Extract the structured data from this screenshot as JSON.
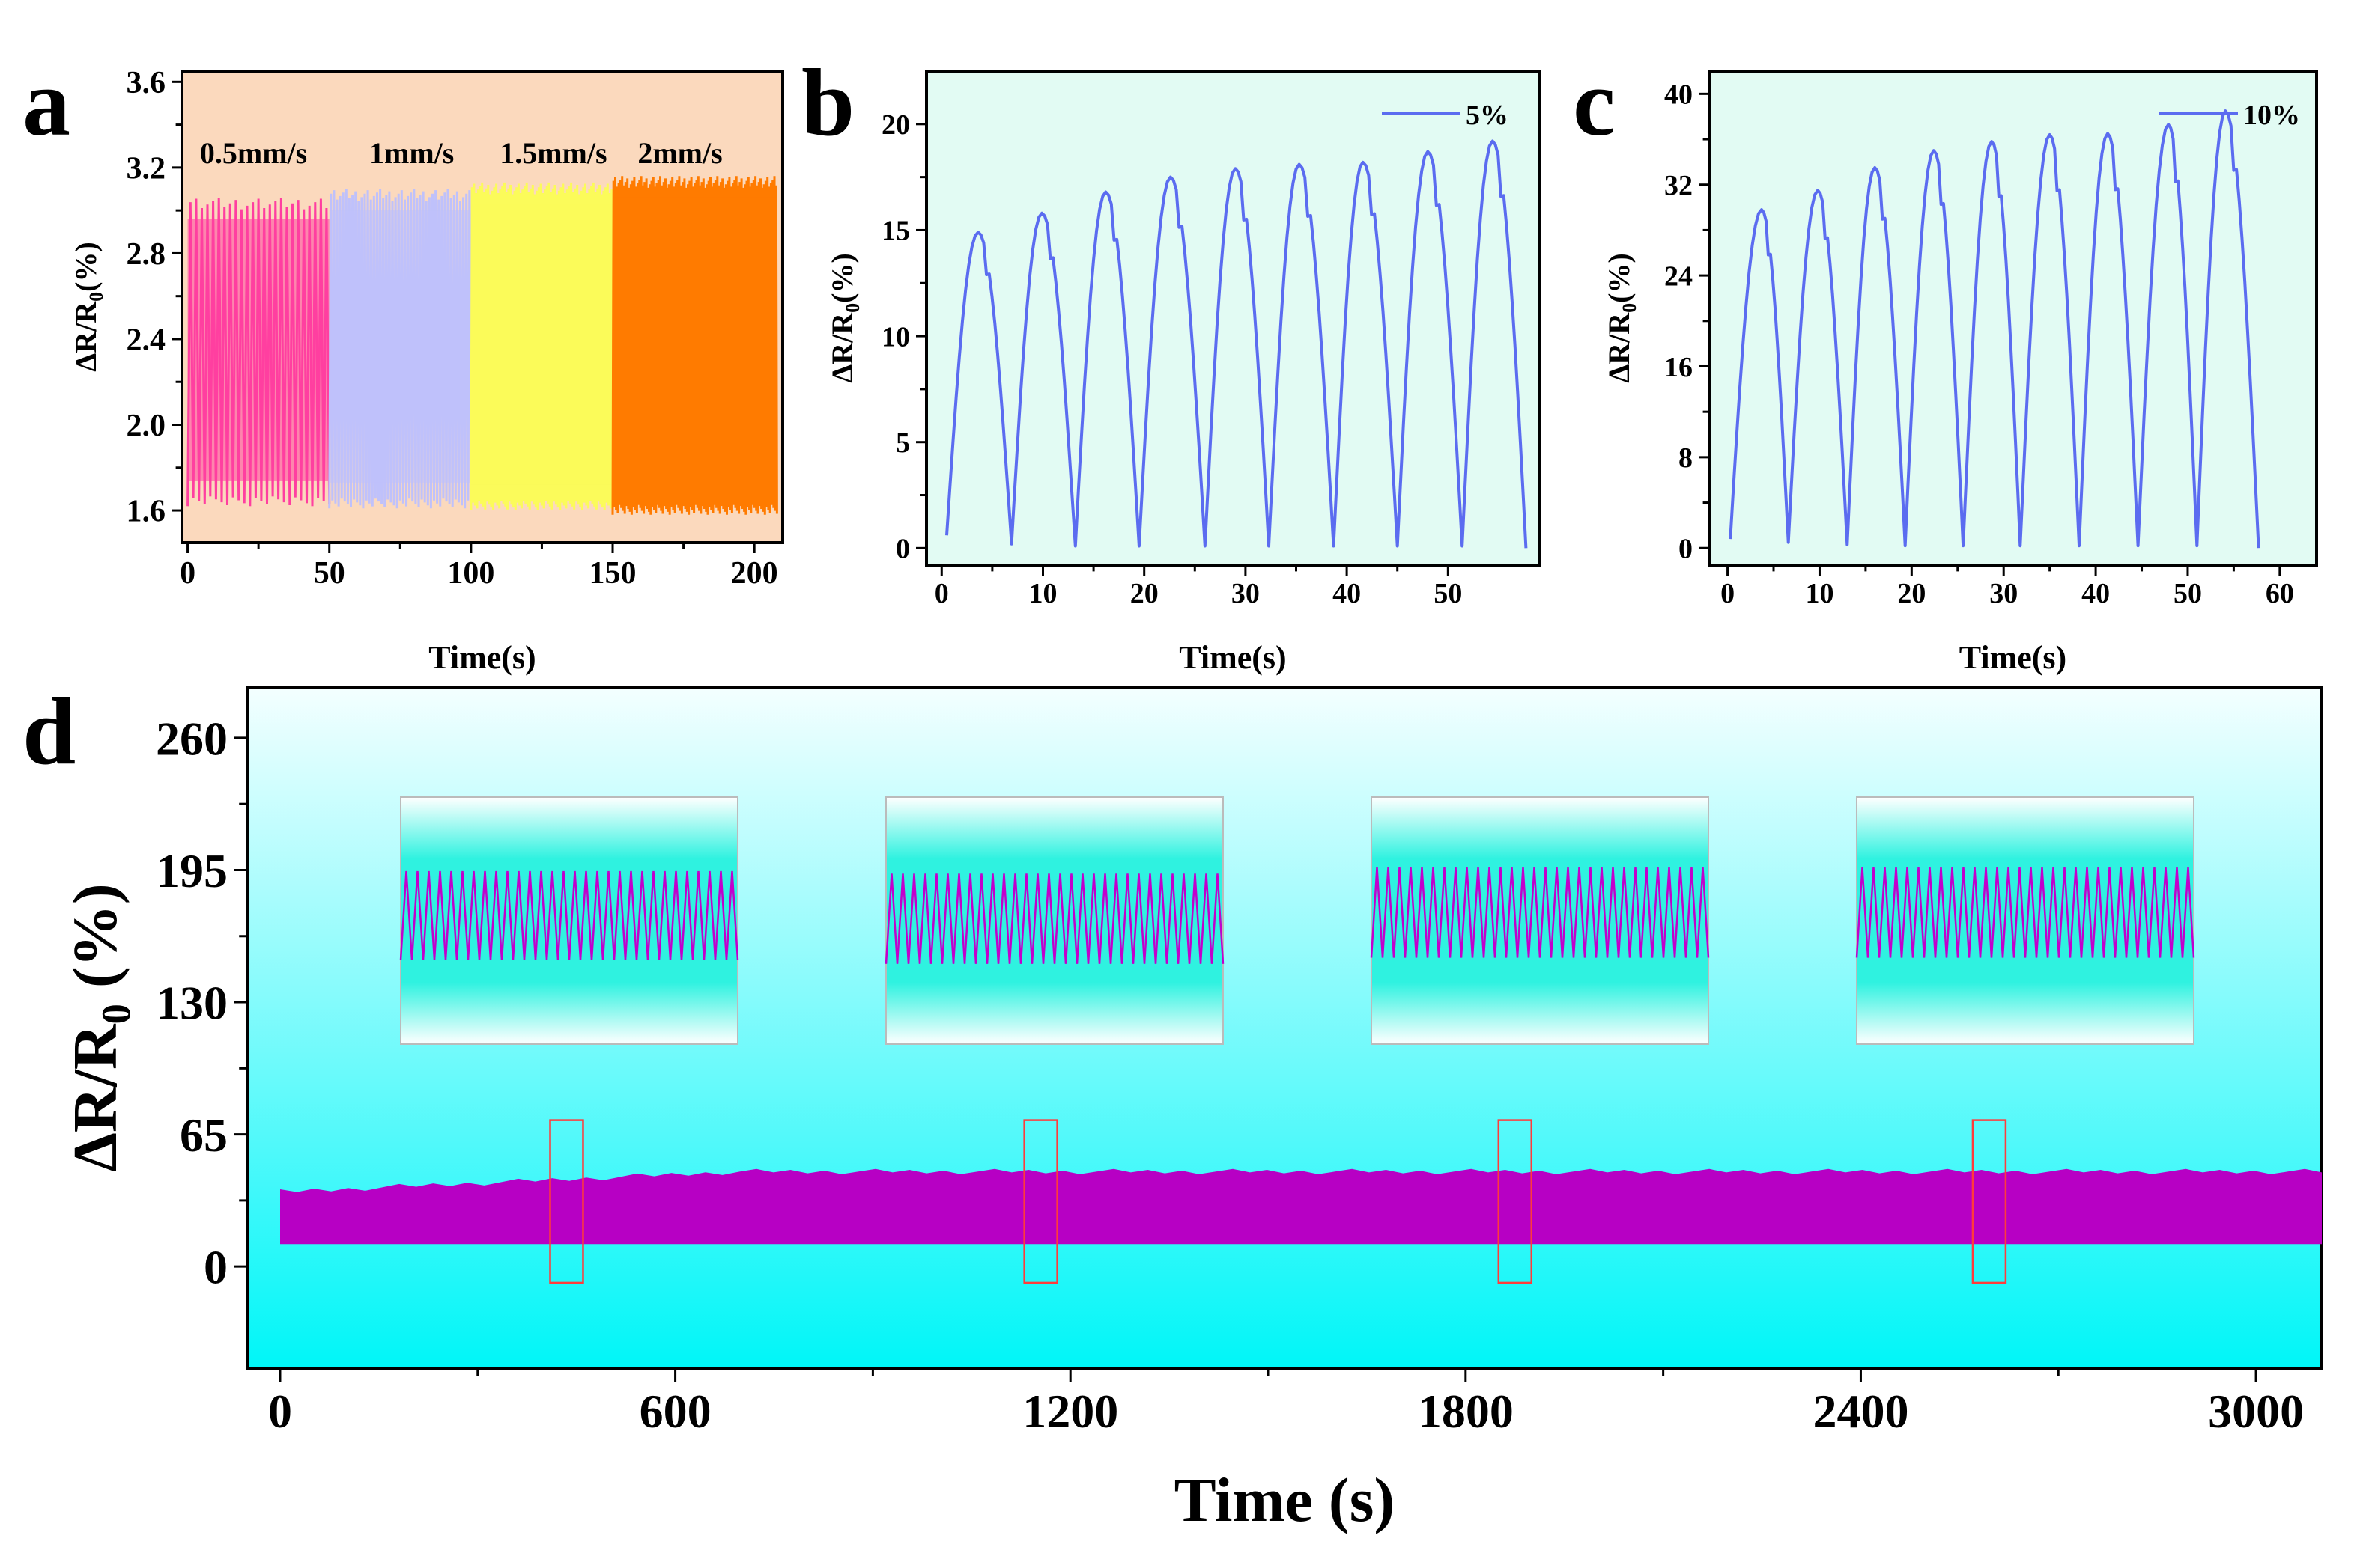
{
  "figure": {
    "panel_labels": [
      "a",
      "b",
      "c",
      "d"
    ]
  },
  "colors": {
    "a_bg": "#fbd9bd",
    "bc_bg": "#e2fbf3",
    "d_bg_top": "#f4ffff",
    "d_bg_bottom": "#00f6f8",
    "a_series": [
      "#ff3fa0",
      "#bfc1fb",
      "#fbfb5a",
      "#ff7b00"
    ],
    "bc_line": "#5b6cf0",
    "d_line": "#b700c4",
    "d_marker": "#ff3b3b",
    "inset_line": "#c200cc"
  },
  "chart_data": [
    {
      "id": "a",
      "type": "line",
      "title": "",
      "xlabel": "Time(s)",
      "ylabel": "ΔR/R0(%)",
      "xlim": [
        -2,
        210
      ],
      "ylim": [
        1.45,
        3.65
      ],
      "xticks": [
        0,
        50,
        100,
        150,
        200
      ],
      "yticks": [
        1.6,
        2.0,
        2.4,
        2.8,
        3.2,
        3.6
      ],
      "ytick_labels": [
        "1.6",
        "2.0",
        "2.4",
        "2.8",
        "3.2",
        "3.6"
      ],
      "series": [
        {
          "name": "0.5mm/s",
          "x_range": [
            0,
            50
          ],
          "cycles": 25,
          "min": 1.62,
          "max": 3.06
        },
        {
          "name": "1mm/s",
          "x_range": [
            50,
            100
          ],
          "cycles": 46,
          "min": 1.61,
          "max": 3.1
        },
        {
          "name": "1.5mm/s",
          "x_range": [
            100,
            150
          ],
          "cycles": 70,
          "min": 1.6,
          "max": 3.13
        },
        {
          "name": "2mm/s",
          "x_range": [
            150,
            208
          ],
          "cycles": 95,
          "min": 1.58,
          "max": 3.16
        }
      ]
    },
    {
      "id": "b",
      "type": "line",
      "xlabel": "Time(s)",
      "ylabel": "ΔR/R0(%)",
      "legend": "5%",
      "xlim": [
        -1.5,
        59
      ],
      "ylim": [
        -0.8,
        22.5
      ],
      "xticks": [
        0,
        10,
        20,
        30,
        40,
        50
      ],
      "yticks": [
        0,
        5,
        10,
        15,
        20
      ],
      "peaks_x": [
        3.6,
        9.9,
        16.2,
        22.6,
        29.0,
        35.3,
        41.6,
        48.0,
        54.4
      ],
      "peaks_y": [
        14.9,
        15.8,
        16.8,
        17.5,
        17.9,
        18.1,
        18.2,
        18.7,
        19.2
      ],
      "valleys_x": [
        0.5,
        6.9,
        13.2,
        19.5,
        26.0,
        32.3,
        38.7,
        45.0,
        51.4,
        57.7
      ],
      "valleys_y": [
        0.6,
        0.2,
        0.1,
        0.1,
        0.1,
        0.1,
        0.1,
        0.1,
        0.1,
        0.0
      ]
    },
    {
      "id": "c",
      "type": "line",
      "xlabel": "Time(s)",
      "ylabel": "ΔR/R0(%)",
      "legend": "10%",
      "xlim": [
        -2,
        64
      ],
      "ylim": [
        -1.5,
        42
      ],
      "xticks": [
        0,
        10,
        20,
        30,
        40,
        50,
        60
      ],
      "yticks": [
        0,
        8,
        16,
        24,
        32,
        40
      ],
      "peaks_x": [
        3.7,
        9.8,
        16.0,
        22.4,
        28.7,
        35.0,
        41.3,
        47.9,
        54.1
      ],
      "peaks_y": [
        29.8,
        31.5,
        33.5,
        35.0,
        35.8,
        36.4,
        36.5,
        37.3,
        38.5
      ],
      "valleys_x": [
        0.3,
        6.6,
        13.0,
        19.3,
        25.6,
        31.8,
        38.2,
        44.6,
        51.0,
        57.7
      ],
      "valleys_y": [
        0.8,
        0.5,
        0.3,
        0.2,
        0.2,
        0.2,
        0.2,
        0.2,
        0.2,
        0.0
      ]
    },
    {
      "id": "d",
      "type": "line",
      "xlabel": "Time (s)",
      "ylabel": "ΔR/R0 (%)",
      "xlim": [
        -50,
        3100
      ],
      "ylim": [
        -50,
        285
      ],
      "xticks": [
        0,
        600,
        1200,
        1800,
        2400,
        3000
      ],
      "yticks": [
        0,
        65,
        130,
        195,
        260
      ],
      "band_min": 11,
      "band_max_start": 38,
      "band_max_end": 48,
      "marked_windows": [
        [
          410,
          460
        ],
        [
          1130,
          1180
        ],
        [
          1850,
          1900
        ],
        [
          2570,
          2620
        ]
      ],
      "insets": [
        {
          "cycles": 30,
          "min": 0.18,
          "max": 0.9
        },
        {
          "cycles": 30,
          "min": 0.15,
          "max": 0.88
        },
        {
          "cycles": 30,
          "min": 0.2,
          "max": 0.93
        },
        {
          "cycles": 30,
          "min": 0.2,
          "max": 0.93
        }
      ]
    }
  ]
}
